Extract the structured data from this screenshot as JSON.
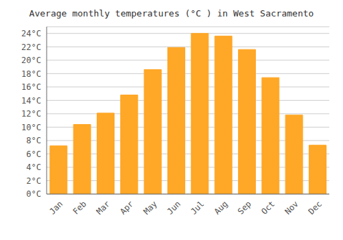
{
  "chart_data": {
    "type": "bar",
    "title": "Average monthly temperatures (°C ) in West Sacramento",
    "categories": [
      "Jan",
      "Feb",
      "Mar",
      "Apr",
      "May",
      "Jun",
      "Jul",
      "Aug",
      "Sep",
      "Oct",
      "Nov",
      "Dec"
    ],
    "values": [
      7.2,
      10.4,
      12.1,
      14.8,
      18.6,
      21.9,
      24.0,
      23.6,
      21.6,
      17.4,
      11.8,
      7.3
    ],
    "color": "#FFA726",
    "ylim": [
      0,
      25
    ],
    "yticks": [
      {
        "value": 0,
        "label": "0°C"
      },
      {
        "value": 2,
        "label": "2°C"
      },
      {
        "value": 4,
        "label": "4°C"
      },
      {
        "value": 6,
        "label": "6°C"
      },
      {
        "value": 8,
        "label": "8°C"
      },
      {
        "value": 10,
        "label": "10°C"
      },
      {
        "value": 12,
        "label": "12°C"
      },
      {
        "value": 14,
        "label": "14°C"
      },
      {
        "value": 16,
        "label": "16°C"
      },
      {
        "value": 18,
        "label": "18°C"
      },
      {
        "value": 20,
        "label": "20°C"
      },
      {
        "value": 22,
        "label": "22°C"
      },
      {
        "value": 24,
        "label": "24°C"
      }
    ],
    "grid": true
  }
}
